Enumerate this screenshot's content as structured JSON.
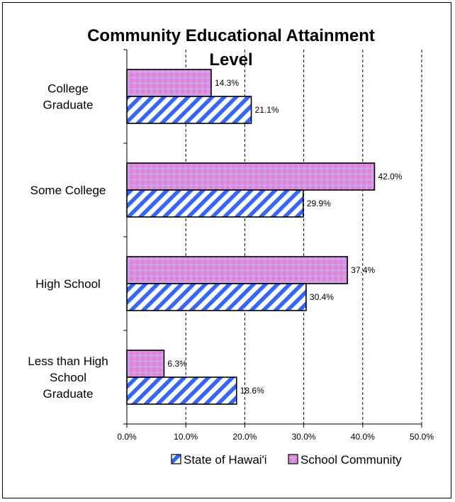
{
  "chart_data": {
    "type": "bar",
    "orientation": "horizontal",
    "title": "Community Educational Attainment Level",
    "categories": [
      "College Graduate",
      "Some College",
      "High School",
      "Less than High School Graduate"
    ],
    "series": [
      {
        "name": "School Community",
        "values": [
          14.3,
          42.0,
          37.4,
          6.3
        ],
        "labels": [
          "14.3%",
          "42.0%",
          "37.4%",
          "6.3%"
        ],
        "color": "#e87fd2",
        "pattern": "grid"
      },
      {
        "name": "State of Hawai'i",
        "values": [
          21.1,
          29.9,
          30.4,
          18.6
        ],
        "labels": [
          "21.1%",
          "29.9%",
          "30.4%",
          "18.6%"
        ],
        "color": "#3366ff",
        "pattern": "diagonal"
      }
    ],
    "xlim": [
      0,
      50
    ],
    "xticks": [
      "0.0%",
      "10.0%",
      "20.0%",
      "30.0%",
      "40.0%",
      "50.0%"
    ],
    "grid": "vertical-dashed",
    "legend": {
      "position": "bottom",
      "entries": [
        "State of Hawai'i",
        "School Community"
      ]
    }
  }
}
